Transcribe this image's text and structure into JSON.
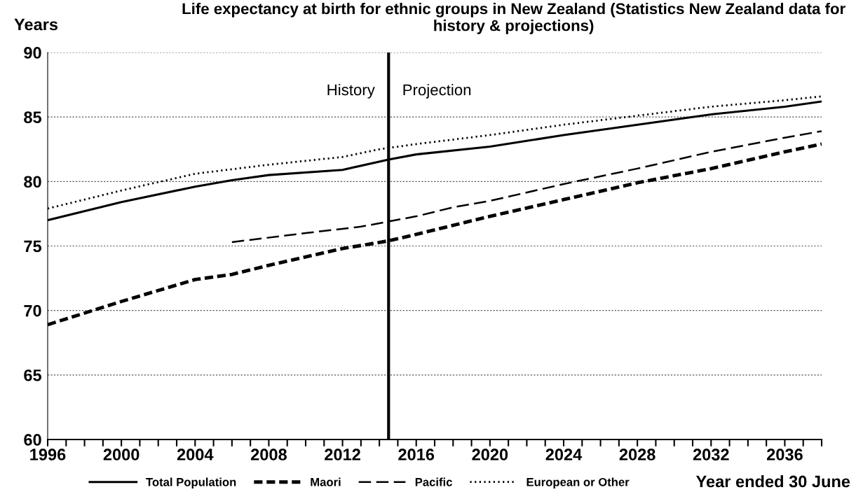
{
  "chart_data": {
    "type": "line",
    "title": "Life expectancy at birth for ethnic groups in New Zealand (Statistics New Zealand data for history & projections)",
    "ylabel": "Years",
    "xlabel": "Year ended 30 June",
    "series": [
      {
        "name": "Total Population",
        "color": "#000000",
        "line_style": "solid",
        "x": [
          1996,
          2000,
          2004,
          2006,
          2008,
          2012,
          2014.5,
          2016,
          2020,
          2024,
          2028,
          2032,
          2036,
          2038
        ],
        "values": [
          77.0,
          78.4,
          79.6,
          80.1,
          80.5,
          80.9,
          81.7,
          82.1,
          82.7,
          83.6,
          84.4,
          85.2,
          85.8,
          86.2
        ]
      },
      {
        "name": "Maori",
        "color": "#000000",
        "line_style": "dashed",
        "x": [
          1996,
          2000,
          2004,
          2006,
          2008,
          2012,
          2014.5,
          2016,
          2020,
          2024,
          2028,
          2032,
          2036,
          2038
        ],
        "values": [
          68.9,
          70.7,
          72.4,
          72.8,
          73.5,
          74.8,
          75.4,
          75.9,
          77.3,
          78.6,
          79.9,
          81.0,
          82.3,
          82.9
        ]
      },
      {
        "name": "Pacific",
        "color": "#000000",
        "line_style": "dashed",
        "x": [
          2006,
          2010,
          2013,
          2016,
          2018,
          2020,
          2024,
          2028,
          2032,
          2036,
          2038
        ],
        "values": [
          75.3,
          76.0,
          76.5,
          77.3,
          78.0,
          78.5,
          79.8,
          81.0,
          82.3,
          83.4,
          83.9
        ]
      },
      {
        "name": "European or Other",
        "color": "#000000",
        "line_style": "dotted",
        "x": [
          1996,
          2000,
          2004,
          2008,
          2012,
          2014,
          2016,
          2020,
          2024,
          2028,
          2032,
          2036,
          2038
        ],
        "values": [
          77.9,
          79.3,
          80.6,
          81.3,
          81.9,
          82.5,
          82.9,
          83.6,
          84.4,
          85.1,
          85.8,
          86.3,
          86.6
        ]
      }
    ],
    "xlim": [
      1996,
      2038
    ],
    "xticks": [
      1996,
      {
        "value": 1997,
        "label": null
      },
      {
        "value": 1998,
        "label": null
      },
      {
        "value": 1999,
        "label": null
      },
      2000,
      {
        "value": 2001,
        "label": null
      },
      {
        "value": 2002,
        "label": null
      },
      {
        "value": 2003,
        "label": null
      },
      2004,
      {
        "value": 2005,
        "label": null
      },
      {
        "value": 2006,
        "label": null
      },
      {
        "value": 2007,
        "label": null
      },
      2008,
      {
        "value": 2009,
        "label": null
      },
      {
        "value": 2010,
        "label": null
      },
      {
        "value": 2011,
        "label": null
      },
      2012,
      {
        "value": 2013,
        "label": null
      },
      {
        "value": 2014,
        "label": null
      },
      {
        "value": 2015,
        "label": null
      },
      2016,
      {
        "value": 2017,
        "label": null
      },
      {
        "value": 2018,
        "label": null
      },
      {
        "value": 2019,
        "label": null
      },
      2020,
      {
        "value": 2021,
        "label": null
      },
      {
        "value": 2022,
        "label": null
      },
      {
        "value": 2023,
        "label": null
      },
      2024,
      {
        "value": 2025,
        "label": null
      },
      {
        "value": 2026,
        "label": null
      },
      {
        "value": 2027,
        "label": null
      },
      2028,
      {
        "value": 2029,
        "label": null
      },
      {
        "value": 2030,
        "label": null
      },
      {
        "value": 2031,
        "label": null
      },
      2032,
      {
        "value": 2033,
        "label": null
      },
      {
        "value": 2034,
        "label": null
      },
      {
        "value": 2035,
        "label": null
      },
      2036,
      {
        "value": 2037,
        "label": null
      },
      {
        "value": 2038,
        "label": null
      }
    ],
    "ylim": [
      60,
      90
    ],
    "yticks": [
      60,
      65,
      70,
      75,
      80,
      85,
      90
    ],
    "ref_lines": [
      {
        "axis": "x",
        "value": 2014.5,
        "color": "#000000",
        "line_style": "solid"
      }
    ],
    "annotations": [
      "History",
      "Projection"
    ],
    "grid": "y",
    "legend": "bottom"
  }
}
